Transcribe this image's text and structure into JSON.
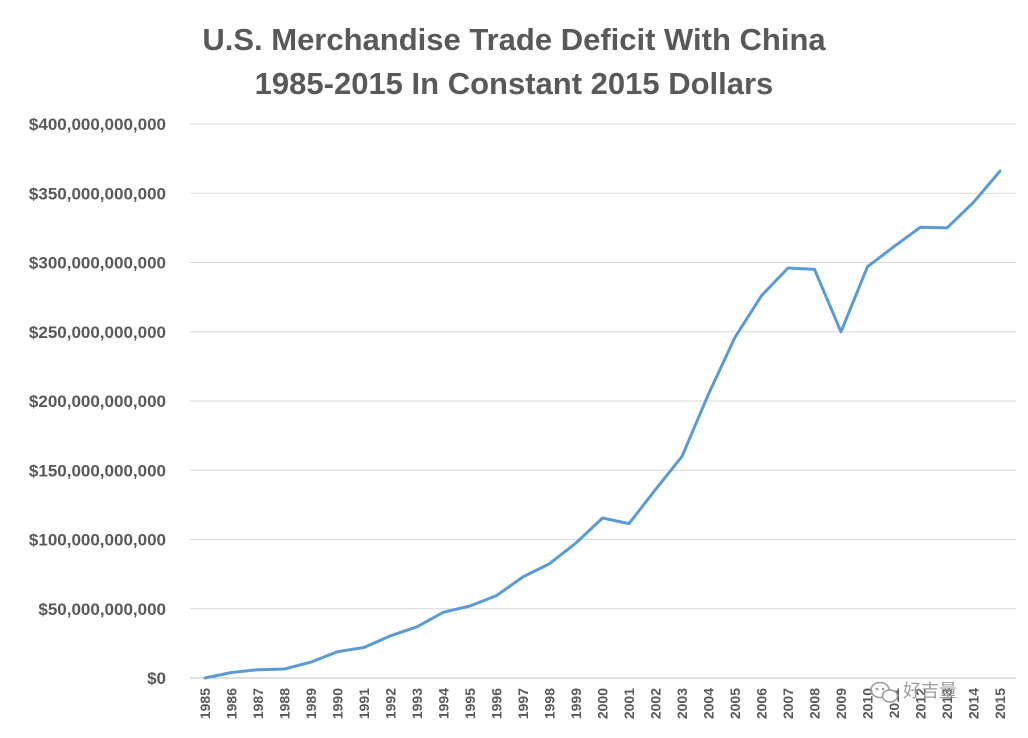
{
  "chart_data": {
    "type": "line",
    "title_line1": "U.S. Merchandise Trade Deficit With China",
    "title_line2": "1985-2015 In Constant 2015 Dollars",
    "xlabel": "",
    "ylabel": "",
    "x": [
      "1985",
      "1986",
      "1987",
      "1988",
      "1989",
      "1990",
      "1991",
      "1992",
      "1993",
      "1994",
      "1995",
      "1996",
      "1997",
      "1998",
      "1999",
      "2000",
      "2001",
      "2002",
      "2003",
      "2004",
      "2005",
      "2006",
      "2007",
      "2008",
      "2009",
      "2010",
      "2011",
      "2012",
      "2013",
      "2014",
      "2015"
    ],
    "series": [
      {
        "values": [
          0,
          4000000000,
          6000000000,
          6500000000,
          11500000000,
          19000000000,
          22000000000,
          30500000000,
          37000000000,
          47500000000,
          52000000000,
          59500000000,
          73000000000,
          82500000000,
          97500000000,
          115500000000,
          111500000000,
          136000000000,
          160000000000,
          205000000000,
          246000000000,
          276000000000,
          296000000000,
          295000000000,
          250000000000,
          297000000000,
          311500000000,
          325500000000,
          325000000000,
          343500000000,
          366000000000
        ],
        "color": "#5b9bd5"
      }
    ],
    "ylim": [
      0,
      400000000000
    ],
    "yticks": [
      0,
      50000000000,
      100000000000,
      150000000000,
      200000000000,
      250000000000,
      300000000000,
      350000000000,
      400000000000
    ],
    "ytick_labels": [
      "$0",
      "$50,000,000,000",
      "$100,000,000,000",
      "$150,000,000,000",
      "$200,000,000,000",
      "$250,000,000,000",
      "$300,000,000,000",
      "$350,000,000,000",
      "$400,000,000,000"
    ],
    "grid": true,
    "legend": "none"
  },
  "watermark": {
    "text": "好吉量",
    "icon": "wechat-icon"
  }
}
